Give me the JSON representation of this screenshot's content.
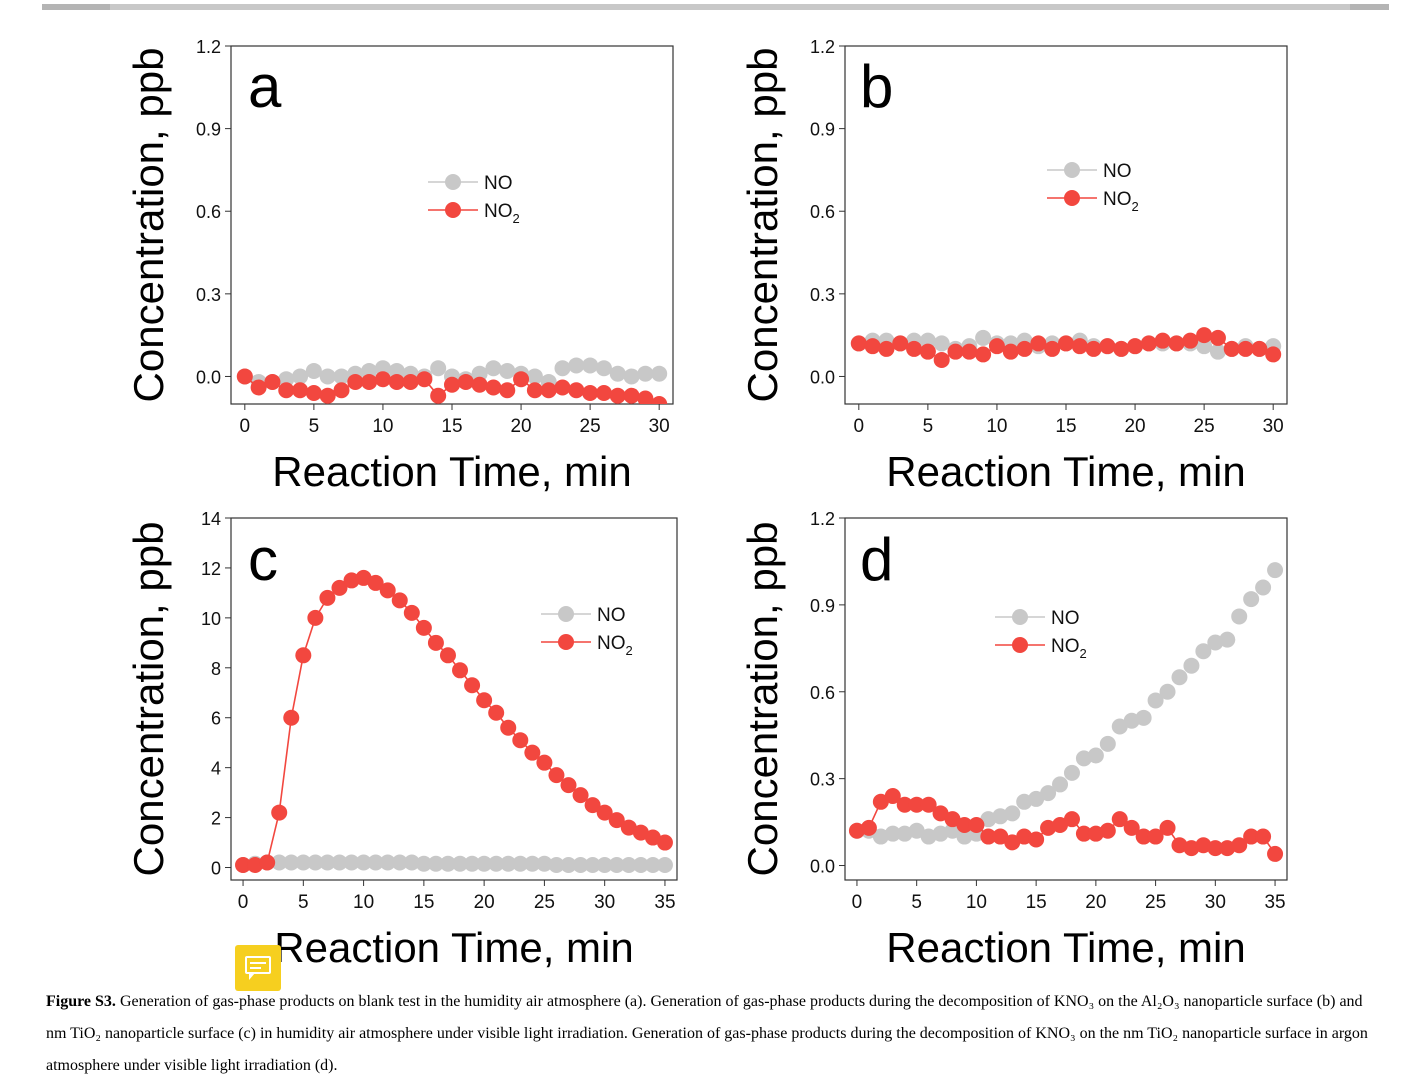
{
  "caption": {
    "label": "Figure S3.",
    "text": " Generation of gas-phase products on blank test in the humidity air atmosphere (a). Generation of gas-phase products during the decomposition of KNO₃ on the Al₂O₃ nanoparticle surface (b) and nm TiO₂ nanoparticle surface (c) in humidity air atmosphere under visible light irradiation. Generation of gas-phase products during the decomposition of KNO₃ on the nm TiO₂ nanoparticle surface in argon atmosphere under visible light irradiation (d)."
  },
  "colors": {
    "NO": "#c8c8c8",
    "NO2": "#f2473f",
    "axis": "#333333"
  },
  "icons": [
    "comment-note-icon"
  ],
  "chart_data": [
    {
      "panel": "a",
      "type": "scatter",
      "xlabel": "Reaction Time, min",
      "ylabel": "Concentration, ppb",
      "xlim": [
        -1,
        31
      ],
      "ylim": [
        -0.1,
        1.2
      ],
      "xticks": [
        0,
        5,
        10,
        15,
        20,
        25,
        30
      ],
      "yticks": [
        0.0,
        0.3,
        0.6,
        0.9,
        1.2
      ],
      "ytick_labels": [
        "0.0",
        "0.3",
        "0.6",
        "0.9",
        "1.2"
      ],
      "grid": false,
      "legend_position": "upper-center",
      "series": [
        {
          "name": "NO",
          "line": false,
          "x": [
            0,
            1,
            2,
            3,
            4,
            5,
            6,
            7,
            8,
            9,
            10,
            11,
            12,
            13,
            14,
            15,
            16,
            17,
            18,
            19,
            20,
            21,
            22,
            23,
            24,
            25,
            26,
            27,
            28,
            29,
            30
          ],
          "y": [
            0.0,
            -0.02,
            -0.02,
            -0.01,
            0.0,
            0.02,
            0.0,
            0.0,
            0.01,
            0.02,
            0.03,
            0.02,
            0.01,
            0.0,
            0.03,
            0.0,
            -0.01,
            0.01,
            0.03,
            0.02,
            0.01,
            0.0,
            -0.02,
            0.03,
            0.04,
            0.04,
            0.03,
            0.01,
            0.0,
            0.01,
            0.01
          ]
        },
        {
          "name": "NO2",
          "line": true,
          "x": [
            0,
            1,
            2,
            3,
            4,
            5,
            6,
            7,
            8,
            9,
            10,
            11,
            12,
            13,
            14,
            15,
            16,
            17,
            18,
            19,
            20,
            21,
            22,
            23,
            24,
            25,
            26,
            27,
            28,
            29,
            30
          ],
          "y": [
            0.0,
            -0.04,
            -0.02,
            -0.05,
            -0.05,
            -0.06,
            -0.07,
            -0.05,
            -0.02,
            -0.02,
            -0.01,
            -0.02,
            -0.02,
            -0.01,
            -0.07,
            -0.03,
            -0.02,
            -0.03,
            -0.04,
            -0.05,
            -0.01,
            -0.05,
            -0.05,
            -0.04,
            -0.05,
            -0.06,
            -0.06,
            -0.07,
            -0.07,
            -0.08,
            -0.1
          ]
        }
      ]
    },
    {
      "panel": "b",
      "type": "scatter",
      "xlabel": "Reaction Time, min",
      "ylabel": "Concentration, ppb",
      "xlim": [
        -1,
        31
      ],
      "ylim": [
        -0.1,
        1.2
      ],
      "xticks": [
        0,
        5,
        10,
        15,
        20,
        25,
        30
      ],
      "yticks": [
        0.0,
        0.3,
        0.6,
        0.9,
        1.2
      ],
      "ytick_labels": [
        "0.0",
        "0.3",
        "0.6",
        "0.9",
        "1.2"
      ],
      "grid": false,
      "legend_position": "upper-center",
      "series": [
        {
          "name": "NO",
          "line": false,
          "x": [
            0,
            1,
            2,
            3,
            4,
            5,
            6,
            7,
            8,
            9,
            10,
            11,
            12,
            13,
            14,
            15,
            16,
            17,
            18,
            19,
            20,
            21,
            22,
            23,
            24,
            25,
            26,
            27,
            28,
            29,
            30
          ],
          "y": [
            0.12,
            0.13,
            0.13,
            0.12,
            0.13,
            0.13,
            0.12,
            0.1,
            0.11,
            0.14,
            0.12,
            0.12,
            0.13,
            0.11,
            0.12,
            0.12,
            0.13,
            0.11,
            0.11,
            0.1,
            0.11,
            0.12,
            0.12,
            0.12,
            0.12,
            0.11,
            0.09,
            0.1,
            0.11,
            0.1,
            0.11
          ]
        },
        {
          "name": "NO2",
          "line": true,
          "x": [
            0,
            1,
            2,
            3,
            4,
            5,
            6,
            7,
            8,
            9,
            10,
            11,
            12,
            13,
            14,
            15,
            16,
            17,
            18,
            19,
            20,
            21,
            22,
            23,
            24,
            25,
            26,
            27,
            28,
            29,
            30
          ],
          "y": [
            0.12,
            0.11,
            0.1,
            0.12,
            0.1,
            0.09,
            0.06,
            0.09,
            0.09,
            0.08,
            0.11,
            0.09,
            0.1,
            0.12,
            0.1,
            0.12,
            0.11,
            0.1,
            0.11,
            0.1,
            0.11,
            0.12,
            0.13,
            0.12,
            0.13,
            0.15,
            0.14,
            0.1,
            0.1,
            0.1,
            0.08
          ]
        }
      ]
    },
    {
      "panel": "c",
      "type": "scatter",
      "xlabel": "Reaction Time, min",
      "ylabel": "Concentration, ppb",
      "xlim": [
        -1,
        36
      ],
      "ylim": [
        -0.5,
        14
      ],
      "xticks": [
        0,
        5,
        10,
        15,
        20,
        25,
        30,
        35
      ],
      "yticks": [
        0,
        2,
        4,
        6,
        8,
        10,
        12,
        14
      ],
      "ytick_labels": [
        "0",
        "2",
        "4",
        "6",
        "8",
        "10",
        "12",
        "14"
      ],
      "grid": false,
      "legend_position": "right",
      "series": [
        {
          "name": "NO",
          "line": false,
          "x": [
            0,
            1,
            2,
            3,
            4,
            5,
            6,
            7,
            8,
            9,
            10,
            11,
            12,
            13,
            14,
            15,
            16,
            17,
            18,
            19,
            20,
            21,
            22,
            23,
            24,
            25,
            26,
            27,
            28,
            29,
            30,
            31,
            32,
            33,
            34,
            35
          ],
          "y": [
            0.1,
            0.15,
            0.2,
            0.2,
            0.2,
            0.2,
            0.2,
            0.2,
            0.2,
            0.2,
            0.2,
            0.2,
            0.2,
            0.2,
            0.2,
            0.15,
            0.15,
            0.15,
            0.15,
            0.15,
            0.15,
            0.15,
            0.15,
            0.15,
            0.15,
            0.15,
            0.1,
            0.1,
            0.1,
            0.1,
            0.1,
            0.1,
            0.1,
            0.1,
            0.1,
            0.1
          ]
        },
        {
          "name": "NO2",
          "line": true,
          "x": [
            0,
            1,
            2,
            3,
            4,
            5,
            6,
            7,
            8,
            9,
            10,
            11,
            12,
            13,
            14,
            15,
            16,
            17,
            18,
            19,
            20,
            21,
            22,
            23,
            24,
            25,
            26,
            27,
            28,
            29,
            30,
            31,
            32,
            33,
            34,
            35
          ],
          "y": [
            0.1,
            0.1,
            0.2,
            2.2,
            6.0,
            8.5,
            10.0,
            10.8,
            11.2,
            11.5,
            11.6,
            11.4,
            11.1,
            10.7,
            10.2,
            9.6,
            9.0,
            8.5,
            7.9,
            7.3,
            6.7,
            6.2,
            5.6,
            5.1,
            4.6,
            4.2,
            3.7,
            3.3,
            2.9,
            2.5,
            2.2,
            1.9,
            1.6,
            1.4,
            1.2,
            1.0
          ]
        }
      ]
    },
    {
      "panel": "d",
      "type": "scatter",
      "xlabel": "Reaction Time, min",
      "ylabel": "Concentration, ppb",
      "xlim": [
        -1,
        36
      ],
      "ylim": [
        -0.05,
        1.2
      ],
      "xticks": [
        0,
        5,
        10,
        15,
        20,
        25,
        30,
        35
      ],
      "yticks": [
        0.0,
        0.3,
        0.6,
        0.9,
        1.2
      ],
      "ytick_labels": [
        "0.0",
        "0.3",
        "0.6",
        "0.9",
        "1.2"
      ],
      "grid": false,
      "legend_position": "upper-center",
      "series": [
        {
          "name": "NO",
          "line": false,
          "x": [
            0,
            1,
            2,
            3,
            4,
            5,
            6,
            7,
            8,
            9,
            10,
            11,
            12,
            13,
            14,
            15,
            16,
            17,
            18,
            19,
            20,
            21,
            22,
            23,
            24,
            25,
            26,
            27,
            28,
            29,
            30,
            31,
            32,
            33,
            34,
            35
          ],
          "y": [
            0.12,
            0.12,
            0.1,
            0.11,
            0.11,
            0.12,
            0.1,
            0.11,
            0.12,
            0.1,
            0.11,
            0.16,
            0.17,
            0.18,
            0.22,
            0.23,
            0.25,
            0.28,
            0.32,
            0.37,
            0.38,
            0.42,
            0.48,
            0.5,
            0.51,
            0.57,
            0.6,
            0.65,
            0.69,
            0.74,
            0.77,
            0.78,
            0.86,
            0.92,
            0.96,
            1.02
          ]
        },
        {
          "name": "NO2",
          "line": true,
          "x": [
            0,
            1,
            2,
            3,
            4,
            5,
            6,
            7,
            8,
            9,
            10,
            11,
            12,
            13,
            14,
            15,
            16,
            17,
            18,
            19,
            20,
            21,
            22,
            23,
            24,
            25,
            26,
            27,
            28,
            29,
            30,
            31,
            32,
            33,
            34,
            35
          ],
          "y": [
            0.12,
            0.13,
            0.22,
            0.24,
            0.21,
            0.21,
            0.21,
            0.18,
            0.16,
            0.14,
            0.14,
            0.1,
            0.1,
            0.08,
            0.1,
            0.09,
            0.13,
            0.14,
            0.16,
            0.11,
            0.11,
            0.12,
            0.16,
            0.13,
            0.1,
            0.1,
            0.13,
            0.07,
            0.06,
            0.07,
            0.06,
            0.06,
            0.07,
            0.1,
            0.1,
            0.04
          ]
        }
      ]
    }
  ]
}
